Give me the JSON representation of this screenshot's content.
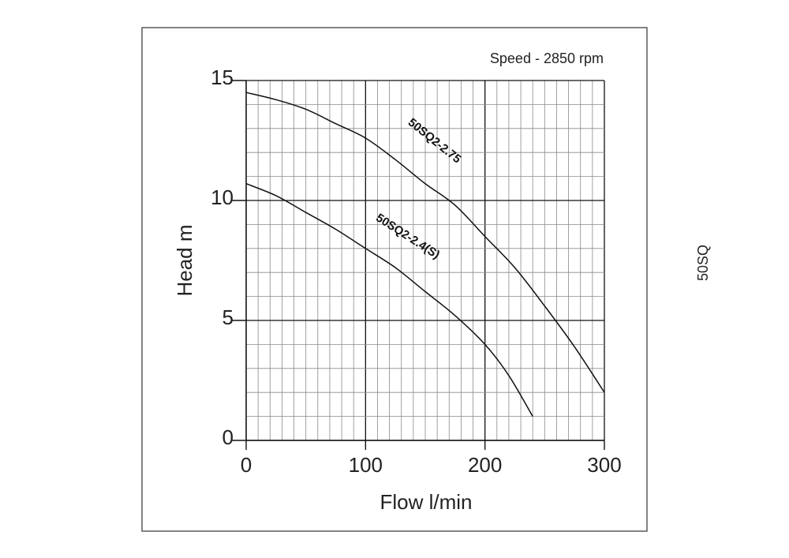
{
  "chart_data": {
    "type": "line",
    "title": "",
    "annotation": "Speed - 2850 rpm",
    "xlabel": "Flow l/min",
    "ylabel": "Head m",
    "xlim": [
      0,
      300
    ],
    "ylim": [
      0,
      15
    ],
    "xticks": [
      0,
      100,
      200,
      300
    ],
    "yticks": [
      0,
      5,
      10,
      15
    ],
    "grid": true,
    "series": [
      {
        "name": "50SQ2-2.75",
        "x": [
          0,
          25,
          50,
          75,
          100,
          125,
          150,
          175,
          200,
          225,
          250,
          275,
          300
        ],
        "y": [
          14.5,
          14.2,
          13.8,
          13.2,
          12.6,
          11.7,
          10.7,
          9.8,
          8.5,
          7.2,
          5.6,
          3.9,
          2.0
        ]
      },
      {
        "name": "50SQ2-2.4(S)",
        "x": [
          0,
          25,
          50,
          75,
          100,
          125,
          150,
          175,
          200,
          220,
          240
        ],
        "y": [
          10.7,
          10.2,
          9.5,
          8.8,
          8.0,
          7.2,
          6.2,
          5.2,
          4.0,
          2.7,
          1.0
        ]
      }
    ]
  },
  "side_label": "50SQ"
}
